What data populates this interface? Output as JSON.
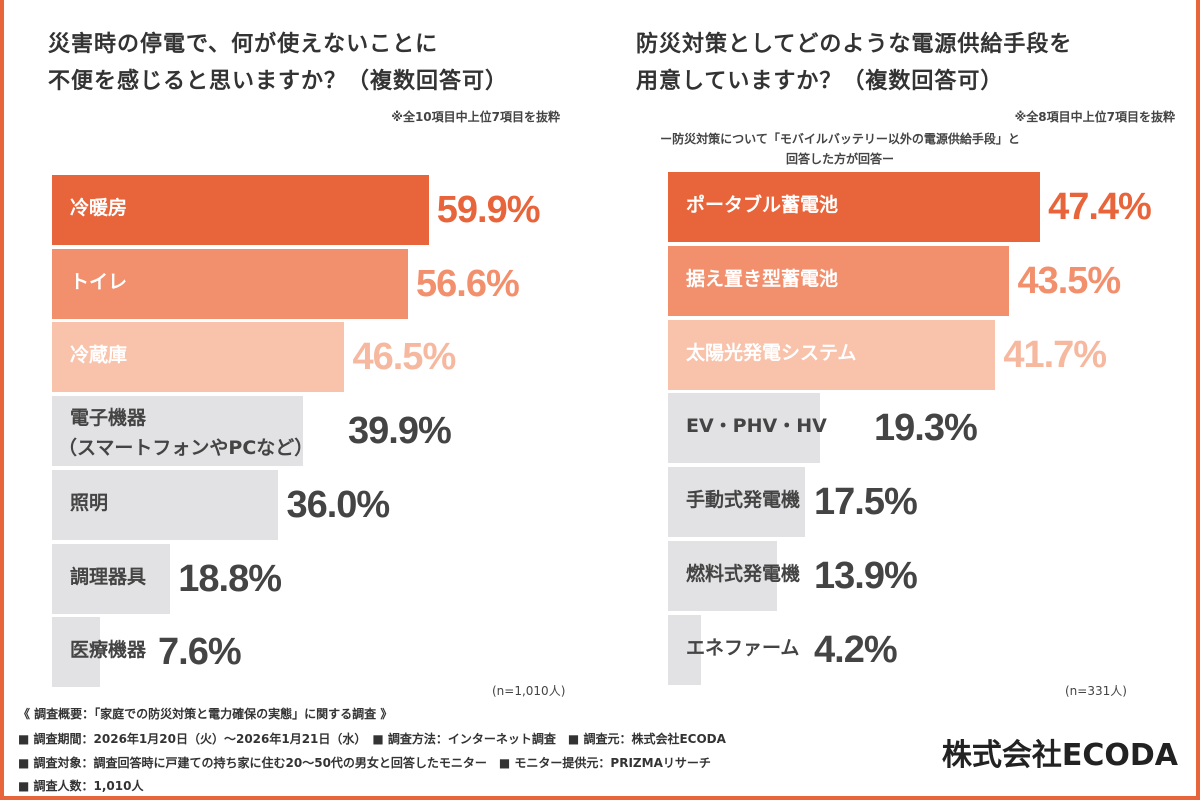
{
  "colors": {
    "top": [
      "#e8643a",
      "#f2906e",
      "#f8c2ab"
    ],
    "top_text": [
      "#e8643a",
      "#f2906e",
      "#f6b9a0"
    ],
    "other": "#e2e2e4",
    "other_text": "#444444",
    "frame": "#e8643a"
  },
  "chart_data": [
    {
      "type": "bar",
      "orientation": "horizontal",
      "title": "災害時の停電で、何が使えないことに不便を感じると思いますか？（複数回答可）",
      "note": "※全10項目中上位7項目を抜粋",
      "sample": "(n=1,010人)",
      "categories": [
        "冷暖房",
        "トイレ",
        "冷蔵庫",
        "電子機器（スマートフォンやPCなど）",
        "照明",
        "調理器具",
        "医療機器"
      ],
      "labels": [
        [
          "冷暖房"
        ],
        [
          "トイレ"
        ],
        [
          "冷蔵庫"
        ],
        [
          "電子機器",
          "（スマートフォンやPCなど）"
        ],
        [
          "照明"
        ],
        [
          "調理器具"
        ],
        [
          "医療機器"
        ]
      ],
      "values": [
        59.9,
        56.6,
        46.5,
        39.9,
        36.0,
        18.8,
        7.6
      ],
      "value_labels": [
        "59.9%",
        "56.6%",
        "46.5%",
        "39.9%",
        "36.0%",
        "18.8%",
        "7.6%"
      ]
    },
    {
      "type": "bar",
      "orientation": "horizontal",
      "title": "防災対策としてどのような電源供給手段を用意していますか？（複数回答可）",
      "note": "※全8項目中上位7項目を抜粋",
      "subnote": [
        "ー防災対策について「モバイルバッテリー以外の電源供給手段」と",
        "回答した方が回答ー"
      ],
      "sample": "(n=331人)",
      "categories": [
        "ポータブル蓄電池",
        "据え置き型蓄電池",
        "太陽光発電システム",
        "EV・PHV・HV",
        "手動式発電機",
        "燃料式発電機",
        "エネファーム"
      ],
      "labels": [
        [
          "ポータブル蓄電池"
        ],
        [
          "据え置き型蓄電池"
        ],
        [
          "太陽光発電システム"
        ],
        [
          "EV・PHV・HV"
        ],
        [
          "手動式発電機"
        ],
        [
          "燃料式発電機"
        ],
        [
          "エネファーム"
        ]
      ],
      "values": [
        47.4,
        43.5,
        41.7,
        19.3,
        17.5,
        13.9,
        4.2
      ],
      "value_labels": [
        "47.4%",
        "43.5%",
        "41.7%",
        "19.3%",
        "17.5%",
        "13.9%",
        "4.2%"
      ]
    }
  ],
  "titles": {
    "left": [
      "災害時の停電で、何が使えないことに",
      "不便を感じると思いますか？（複数回答可）"
    ],
    "right": [
      "防災対策としてどのような電源供給手段を",
      "用意していますか？（複数回答可）"
    ]
  },
  "footer": {
    "heading": "《 調査概要：「家庭での防災対策と電力確保の実態」に関する調査 》",
    "line1": "■ 調査期間：2026年1月20日（火）～2026年1月21日（水）　■ 調査方法：インターネット調査　■ 調査元：株式会社ECODA",
    "line2": "■ 調査対象：調査回答時に戸建ての持ち家に住む20～50代の男女と回答したモニター　■ モニター提供元：PRIZMAリサーチ",
    "line3": "■ 調査人数：1,010人"
  },
  "logo": "株式会社ECODA"
}
